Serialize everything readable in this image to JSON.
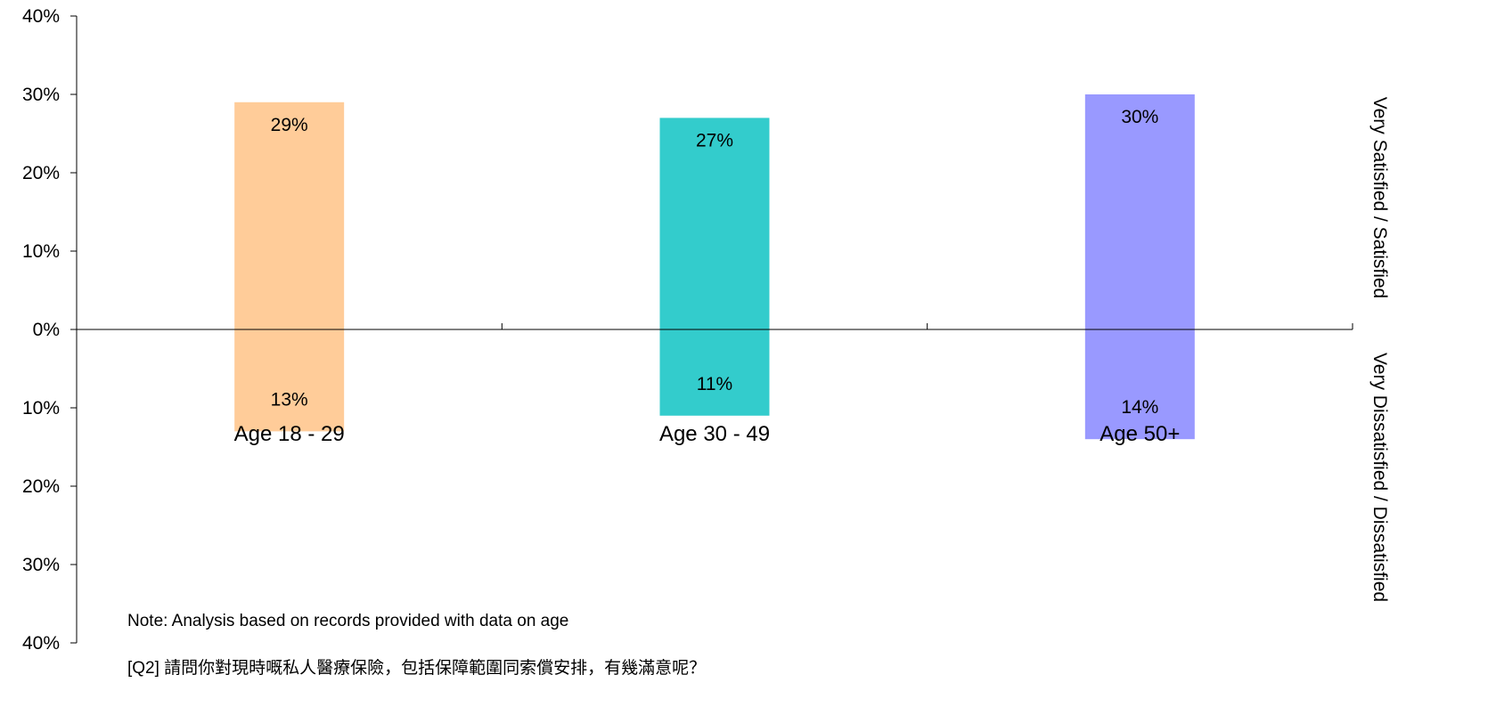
{
  "chart_data": {
    "type": "bar",
    "categories": [
      "Age 18 - 29",
      "Age 30 - 49",
      "Age 50+"
    ],
    "series": [
      {
        "name": "Very Satisfied / Satisfied",
        "values": [
          29,
          27,
          30
        ],
        "labels": [
          "29%",
          "27%",
          "30%"
        ]
      },
      {
        "name": "Very Dissatisfied / Dissatisfied",
        "values": [
          13,
          11,
          14
        ],
        "labels": [
          "13%",
          "11%",
          "14%"
        ]
      }
    ],
    "bar_colors": [
      "#FFCC99",
      "#33CCCC",
      "#9999FF"
    ],
    "y_ticks": [
      {
        "value": 40,
        "label": "40%"
      },
      {
        "value": 30,
        "label": "30%"
      },
      {
        "value": 20,
        "label": "20%"
      },
      {
        "value": 10,
        "label": "10%"
      },
      {
        "value": 0,
        "label": "0%"
      },
      {
        "value": -10,
        "label": "10%"
      },
      {
        "value": -20,
        "label": "20%"
      },
      {
        "value": -30,
        "label": "30%"
      },
      {
        "value": -40,
        "label": "40%"
      }
    ],
    "ylim": [
      -40,
      40
    ],
    "grid": false,
    "right_labels": {
      "upper": "Very Satisfied / Satisfied",
      "lower": "Very Dissatisfied / Dissatisfied"
    },
    "notes": [
      "Note: Analysis based on records provided with data on age",
      "[Q2] 請問你對現時嘅私人醫療保險，包括保障範圍同索償安排，有幾滿意呢？"
    ]
  }
}
